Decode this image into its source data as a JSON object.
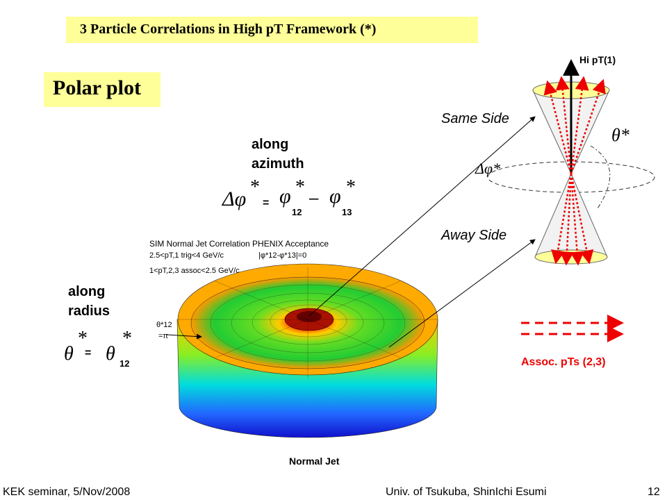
{
  "header": {
    "title": "3 Particle Correlations in High pT Framework (*)"
  },
  "section": {
    "title": "Polar plot"
  },
  "azimuth": {
    "label": "along azimuth",
    "lhs": "Δφ",
    "star1": "*",
    "eq": "=",
    "phi12": "φ",
    "star2": "*",
    "sub12": "12",
    "minus": "–",
    "phi13": "φ",
    "star3": "*",
    "sub13": "13"
  },
  "radius": {
    "label": "along radius",
    "lhs": "θ",
    "star1": "*",
    "eq": "=",
    "rhs": "θ",
    "star2": "*",
    "sub12": "12"
  },
  "plot": {
    "title": "SIM Normal Jet Correlation PHENIX Acceptance",
    "line1": "2.5<pT,1 trig<4 GeV/c",
    "line1b": "|φ*12-φ*13|=0",
    "line2": "1<pT,2,3 assoc<2.5 GeV/c",
    "theta_label": "θ*12",
    "theta_value": "=π",
    "caption": "Normal Jet"
  },
  "diagram": {
    "hi_pt": "Hi pT(1)",
    "same_side": "Same Side",
    "away_side": "Away Side",
    "theta_star": "θ*",
    "delta_phi_star": "Δφ*",
    "assoc": "Assoc. pTs (2,3)"
  },
  "footer": {
    "left": "KEK seminar, 5/Nov/2008",
    "center": "Univ. of Tsukuba, ShinIchi Esumi",
    "page": "12"
  }
}
